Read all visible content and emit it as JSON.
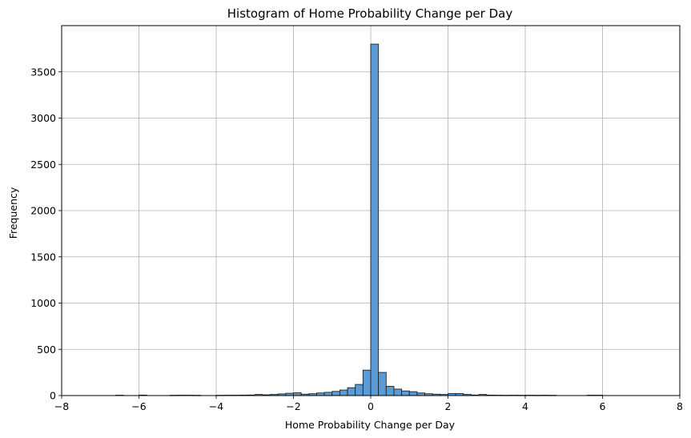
{
  "chart_data": {
    "type": "bar",
    "title": "Histogram of Home Probability Change per Day",
    "xlabel": "Home Probability Change per Day",
    "ylabel": "Frequency",
    "xlim": [
      -8,
      8
    ],
    "ylim": [
      0,
      4000
    ],
    "xticks": [
      -8,
      -6,
      -4,
      -2,
      0,
      2,
      4,
      6,
      8
    ],
    "xtick_labels": [
      "−8",
      "−6",
      "−4",
      "−2",
      "0",
      "2",
      "4",
      "6",
      "8"
    ],
    "yticks": [
      0,
      500,
      1000,
      1500,
      2000,
      2500,
      3000,
      3500
    ],
    "ytick_labels": [
      "0",
      "500",
      "1000",
      "1500",
      "2000",
      "2500",
      "3000",
      "3500"
    ],
    "grid": true,
    "bar_color": "#5b9bd5",
    "bar_edge_color": "#222222",
    "bins": [
      {
        "x0": -6.6,
        "x1": -6.4,
        "count": 4
      },
      {
        "x0": -6.0,
        "x1": -5.8,
        "count": 5
      },
      {
        "x0": -5.2,
        "x1": -5.0,
        "count": 3
      },
      {
        "x0": -5.0,
        "x1": -4.8,
        "count": 4
      },
      {
        "x0": -4.8,
        "x1": -4.6,
        "count": 4
      },
      {
        "x0": -4.6,
        "x1": -4.4,
        "count": 3
      },
      {
        "x0": -4.0,
        "x1": -3.8,
        "count": 3
      },
      {
        "x0": -3.8,
        "x1": -3.6,
        "count": 4
      },
      {
        "x0": -3.6,
        "x1": -3.4,
        "count": 4
      },
      {
        "x0": -3.4,
        "x1": -3.2,
        "count": 5
      },
      {
        "x0": -3.2,
        "x1": -3.0,
        "count": 6
      },
      {
        "x0": -3.0,
        "x1": -2.8,
        "count": 12
      },
      {
        "x0": -2.8,
        "x1": -2.6,
        "count": 8
      },
      {
        "x0": -2.6,
        "x1": -2.4,
        "count": 12
      },
      {
        "x0": -2.4,
        "x1": -2.2,
        "count": 18
      },
      {
        "x0": -2.2,
        "x1": -2.0,
        "count": 25
      },
      {
        "x0": -2.0,
        "x1": -1.8,
        "count": 30
      },
      {
        "x0": -1.8,
        "x1": -1.6,
        "count": 15
      },
      {
        "x0": -1.6,
        "x1": -1.4,
        "count": 20
      },
      {
        "x0": -1.4,
        "x1": -1.2,
        "count": 28
      },
      {
        "x0": -1.2,
        "x1": -1.0,
        "count": 35
      },
      {
        "x0": -1.0,
        "x1": -0.8,
        "count": 45
      },
      {
        "x0": -0.8,
        "x1": -0.6,
        "count": 60
      },
      {
        "x0": -0.6,
        "x1": -0.4,
        "count": 85
      },
      {
        "x0": -0.4,
        "x1": -0.2,
        "count": 120
      },
      {
        "x0": -0.2,
        "x1": 0.0,
        "count": 275
      },
      {
        "x0": 0.0,
        "x1": 0.2,
        "count": 3800
      },
      {
        "x0": 0.2,
        "x1": 0.4,
        "count": 250
      },
      {
        "x0": 0.4,
        "x1": 0.6,
        "count": 100
      },
      {
        "x0": 0.6,
        "x1": 0.8,
        "count": 70
      },
      {
        "x0": 0.8,
        "x1": 1.0,
        "count": 50
      },
      {
        "x0": 1.0,
        "x1": 1.2,
        "count": 42
      },
      {
        "x0": 1.2,
        "x1": 1.4,
        "count": 28
      },
      {
        "x0": 1.4,
        "x1": 1.6,
        "count": 20
      },
      {
        "x0": 1.6,
        "x1": 1.8,
        "count": 15
      },
      {
        "x0": 1.8,
        "x1": 2.0,
        "count": 12
      },
      {
        "x0": 2.0,
        "x1": 2.2,
        "count": 22
      },
      {
        "x0": 2.2,
        "x1": 2.4,
        "count": 22
      },
      {
        "x0": 2.4,
        "x1": 2.6,
        "count": 12
      },
      {
        "x0": 2.6,
        "x1": 2.8,
        "count": 6
      },
      {
        "x0": 2.8,
        "x1": 3.0,
        "count": 12
      },
      {
        "x0": 3.0,
        "x1": 3.2,
        "count": 5
      },
      {
        "x0": 3.2,
        "x1": 3.4,
        "count": 4
      },
      {
        "x0": 3.4,
        "x1": 3.6,
        "count": 3
      },
      {
        "x0": 3.6,
        "x1": 3.8,
        "count": 4
      },
      {
        "x0": 3.8,
        "x1": 4.0,
        "count": 3
      },
      {
        "x0": 4.0,
        "x1": 4.2,
        "count": 4
      },
      {
        "x0": 4.2,
        "x1": 4.4,
        "count": 3
      },
      {
        "x0": 4.4,
        "x1": 4.6,
        "count": 4
      },
      {
        "x0": 4.6,
        "x1": 4.8,
        "count": 3
      },
      {
        "x0": 5.6,
        "x1": 5.8,
        "count": 4
      },
      {
        "x0": 5.8,
        "x1": 6.0,
        "count": 4
      }
    ]
  }
}
